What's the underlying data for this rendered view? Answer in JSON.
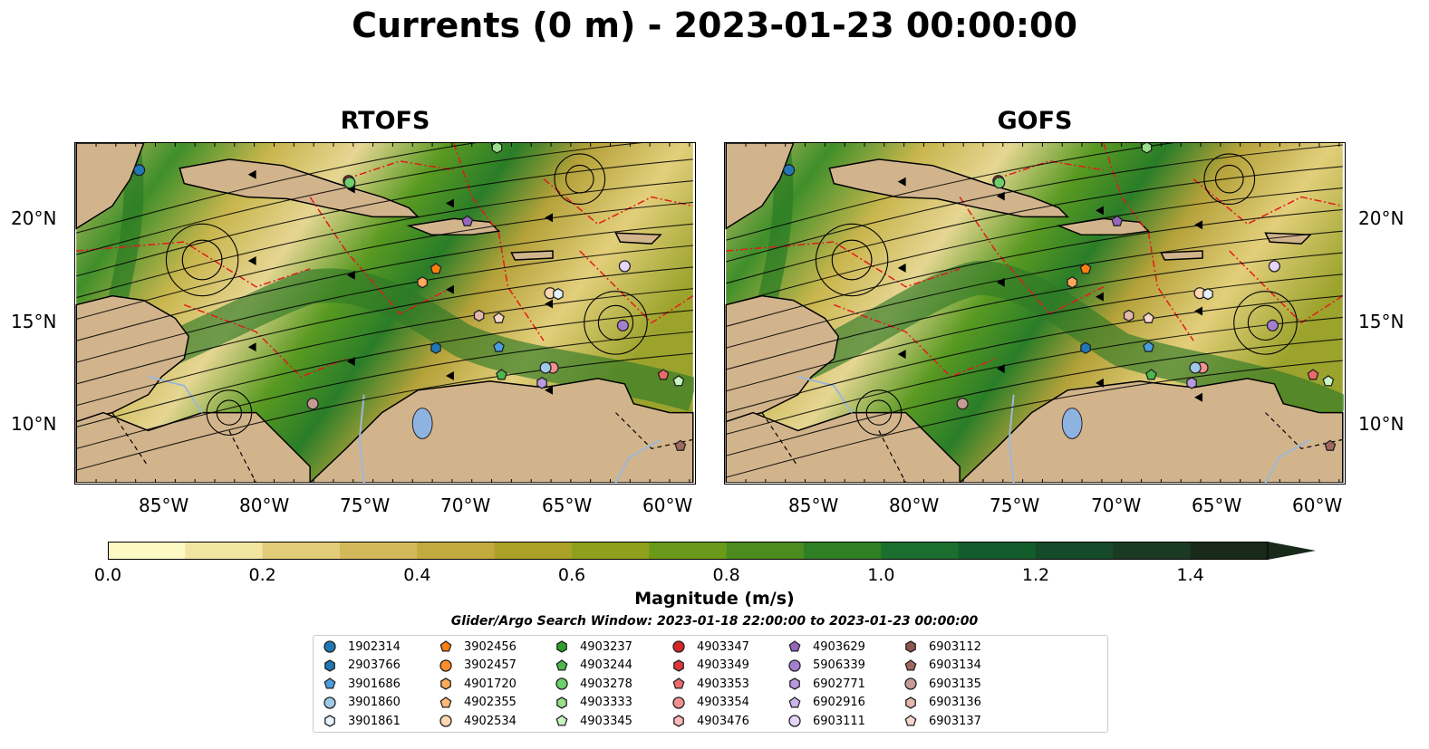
{
  "title": "Currents (0 m) - 2023-01-23 00:00:00",
  "panels": [
    {
      "title": "RTOFS"
    },
    {
      "title": "GOFS"
    }
  ],
  "axes": {
    "lon_labels": [
      "85°W",
      "80°W",
      "75°W",
      "70°W",
      "65°W",
      "60°W"
    ],
    "lat_labels": [
      "20°N",
      "15°N",
      "10°N"
    ]
  },
  "colorbar": {
    "label": "Magnitude (m/s)",
    "ticks": [
      "0.0",
      "0.2",
      "0.4",
      "0.6",
      "0.8",
      "1.0",
      "1.2",
      "1.4"
    ],
    "range": [
      0.0,
      1.5
    ],
    "extend": "max",
    "colors": [
      "#fdf9c4",
      "#f2e5a0",
      "#e3cc79",
      "#d4b95a",
      "#c3aa3f",
      "#aba127",
      "#8fa11c",
      "#6b9a1a",
      "#4c8c1e",
      "#2f7f25",
      "#1a6f2f",
      "#135c2c",
      "#154a2a",
      "#1a3a24",
      "#1a2a1a"
    ]
  },
  "search_window": "Glider/Argo Search Window: 2023-01-18 22:00:00 to 2023-01-23 00:00:00",
  "legend": [
    {
      "id": "1902314",
      "marker": "circle",
      "color": "#1f77b4"
    },
    {
      "id": "2903766",
      "marker": "hexagon",
      "color": "#1f77b4"
    },
    {
      "id": "3901686",
      "marker": "pentagon",
      "color": "#4a9fe0"
    },
    {
      "id": "3901860",
      "marker": "circle",
      "color": "#9ecae9"
    },
    {
      "id": "3901861",
      "marker": "hexagon",
      "color": "#e6f3ff"
    },
    {
      "id": "3902456",
      "marker": "pentagon",
      "color": "#ff7f0e"
    },
    {
      "id": "3902457",
      "marker": "circle",
      "color": "#ff8c2a"
    },
    {
      "id": "4901720",
      "marker": "hexagon",
      "color": "#ffa95a"
    },
    {
      "id": "4902355",
      "marker": "pentagon",
      "color": "#ffbb78"
    },
    {
      "id": "4902534",
      "marker": "circle",
      "color": "#ffd8b0"
    },
    {
      "id": "4903237",
      "marker": "hexagon",
      "color": "#2ca02c"
    },
    {
      "id": "4903244",
      "marker": "pentagon",
      "color": "#4cb84c"
    },
    {
      "id": "4903278",
      "marker": "circle",
      "color": "#6ccf6c"
    },
    {
      "id": "4903333",
      "marker": "hexagon",
      "color": "#98df8a"
    },
    {
      "id": "4903345",
      "marker": "pentagon",
      "color": "#c8f5c0"
    },
    {
      "id": "4903347",
      "marker": "circle",
      "color": "#d62728"
    },
    {
      "id": "4903349",
      "marker": "hexagon",
      "color": "#e03838"
    },
    {
      "id": "4903353",
      "marker": "pentagon",
      "color": "#ec6a6a"
    },
    {
      "id": "4903354",
      "marker": "circle",
      "color": "#f49090"
    },
    {
      "id": "4903476",
      "marker": "hexagon",
      "color": "#ffb8b8"
    },
    {
      "id": "4903629",
      "marker": "pentagon",
      "color": "#9467bd"
    },
    {
      "id": "5906339",
      "marker": "circle",
      "color": "#a57fcf"
    },
    {
      "id": "6902771",
      "marker": "hexagon",
      "color": "#b999e0"
    },
    {
      "id": "6902916",
      "marker": "pentagon",
      "color": "#cdb4ee"
    },
    {
      "id": "6903111",
      "marker": "circle",
      "color": "#e6d4fa"
    },
    {
      "id": "6903112",
      "marker": "hexagon",
      "color": "#8c564b"
    },
    {
      "id": "6903134",
      "marker": "pentagon",
      "color": "#a0695e"
    },
    {
      "id": "6903135",
      "marker": "circle",
      "color": "#c49c94"
    },
    {
      "id": "6903136",
      "marker": "hexagon",
      "color": "#e3b8ad"
    },
    {
      "id": "6903137",
      "marker": "pentagon",
      "color": "#f7d6cc"
    }
  ]
}
